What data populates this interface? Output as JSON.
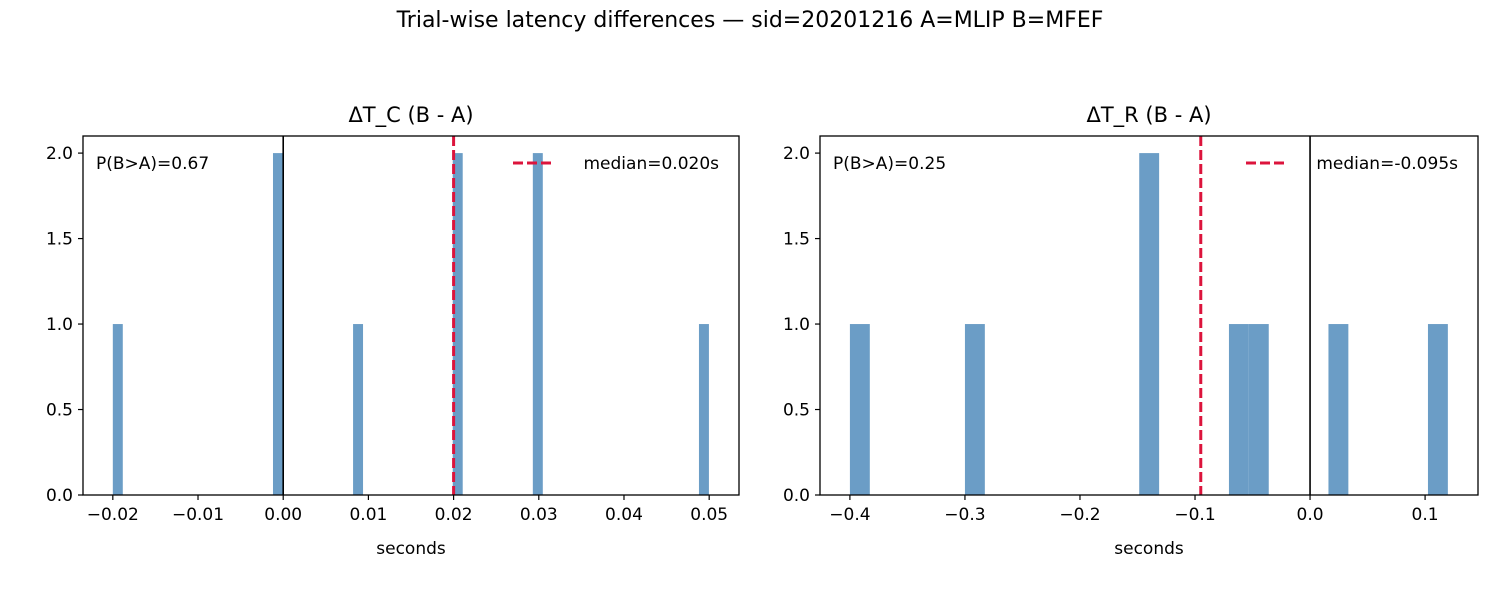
{
  "figure": {
    "title": "Trial-wise latency differences — sid=20201216  A=MLIP  B=MFEF"
  },
  "colors": {
    "bar": "#6b9dc6",
    "median": "#dc143c",
    "zero_line": "#000000",
    "axes": "#000000"
  },
  "chart_data": [
    {
      "type": "bar",
      "title": "ΔT_C (B - A)",
      "xlabel": "seconds",
      "ylabel": "",
      "xlim": [
        -0.0235,
        0.0535
      ],
      "ylim": [
        0,
        2.1
      ],
      "xticks": [
        -0.02,
        -0.01,
        0.0,
        0.01,
        0.02,
        0.03,
        0.04,
        0.05
      ],
      "xtick_labels": [
        "−0.02",
        "−0.01",
        "0.00",
        "0.01",
        "0.02",
        "0.03",
        "0.04",
        "0.05"
      ],
      "yticks": [
        0,
        0.5,
        1.0,
        1.5,
        2.0
      ],
      "ytick_labels": [
        "0.0",
        "0.5",
        "1.0",
        "1.5",
        "2.0"
      ],
      "bin_width": 0.00117,
      "bins": [
        {
          "x": -0.02,
          "count": 1
        },
        {
          "x": -0.0012,
          "count": 2
        },
        {
          "x": 0.0082,
          "count": 1
        },
        {
          "x": 0.0199,
          "count": 2
        },
        {
          "x": 0.0293,
          "count": 2
        },
        {
          "x": 0.0488,
          "count": 1
        }
      ],
      "median": 0.02,
      "zero_line": 0.0,
      "annotation": "P(B>A)=0.67",
      "legend": {
        "label": "median=0.020s",
        "position": "top-right"
      }
    },
    {
      "type": "bar",
      "title": "ΔT_R (B - A)",
      "xlabel": "seconds",
      "ylabel": "",
      "xlim": [
        -0.426,
        0.146
      ],
      "ylim": [
        0,
        2.1
      ],
      "xticks": [
        -0.4,
        -0.3,
        -0.2,
        -0.1,
        0.0,
        0.1
      ],
      "xtick_labels": [
        "−0.4",
        "−0.3",
        "−0.2",
        "−0.1",
        "0.0",
        "0.1"
      ],
      "yticks": [
        0,
        0.5,
        1.0,
        1.5,
        2.0
      ],
      "ytick_labels": [
        "0.0",
        "0.5",
        "1.0",
        "1.5",
        "2.0"
      ],
      "bin_width": 0.0173,
      "bins": [
        {
          "x": -0.4,
          "count": 1
        },
        {
          "x": -0.3,
          "count": 1
        },
        {
          "x": -0.1485,
          "count": 2
        },
        {
          "x": -0.0705,
          "count": 1
        },
        {
          "x": -0.0532,
          "count": 1
        },
        {
          "x": 0.016,
          "count": 1
        },
        {
          "x": 0.1025,
          "count": 1
        }
      ],
      "median": -0.095,
      "zero_line": 0.0,
      "annotation": "P(B>A)=0.25",
      "legend": {
        "label": "median=-0.095s",
        "position": "top-right"
      }
    }
  ]
}
